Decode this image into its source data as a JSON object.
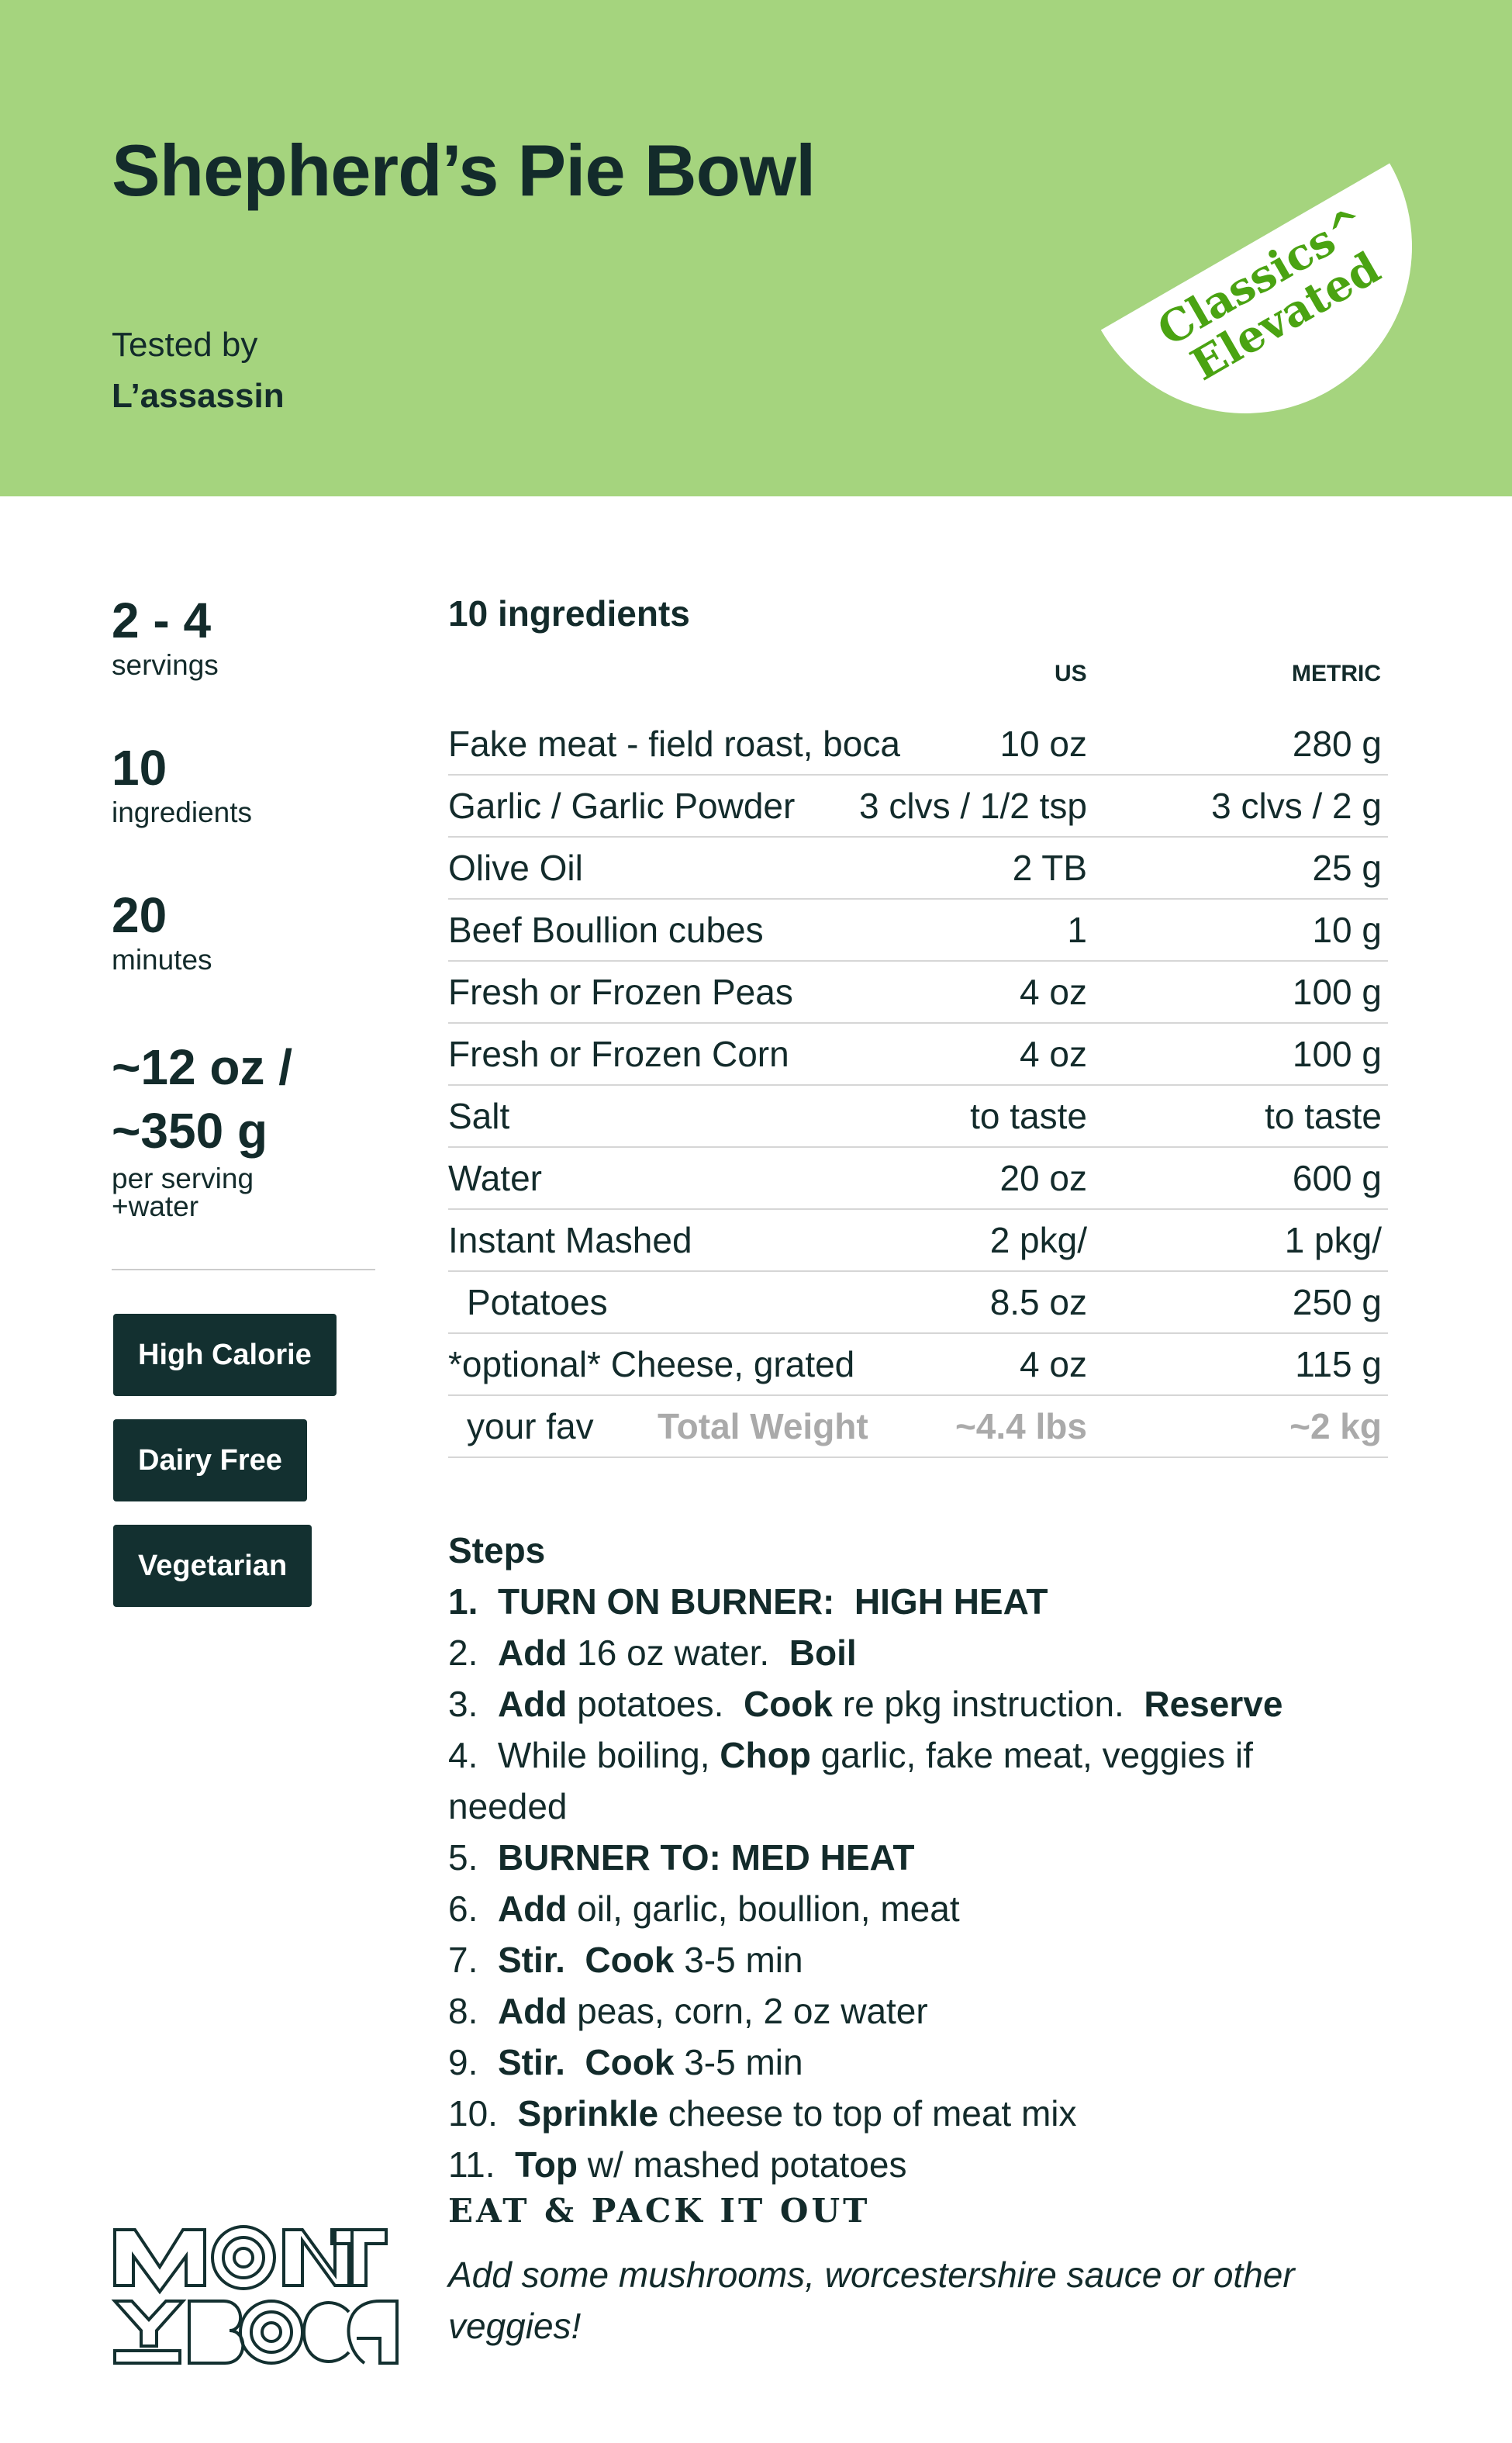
{
  "header": {
    "title": "Shepherd’s Pie Bowl",
    "tested_label": "Tested by",
    "tester": "L’assassin",
    "badge_line1": "Classics^",
    "badge_line2": "Elevated",
    "background": "#a5d47e",
    "badge_color": "#4aa312"
  },
  "stats": [
    {
      "value": "2 - 4",
      "label": "servings"
    },
    {
      "value": "10",
      "label": "ingredients"
    },
    {
      "value": "20",
      "label": "minutes"
    },
    {
      "value_line1": "~12 oz /",
      "value_line2": "~350 g",
      "label_line1": "per serving",
      "label_line2": "+water"
    }
  ],
  "tags": [
    "High Calorie",
    "Dairy Free",
    "Vegetarian"
  ],
  "ingredients": {
    "title": "10 ingredients",
    "col_us": "US",
    "col_metric": "METRIC",
    "rows": [
      {
        "name": "Fake meat - field roast, boca",
        "us": "10 oz",
        "metric": "280 g"
      },
      {
        "name": "Garlic / Garlic Powder",
        "us": "3 clvs / 1/2 tsp",
        "metric": "3 clvs / 2 g"
      },
      {
        "name": "Olive Oil",
        "us": "2 TB",
        "metric": "25 g"
      },
      {
        "name": "Beef Boullion cubes",
        "us": "1",
        "metric": "10 g"
      },
      {
        "name": "Fresh or Frozen Peas",
        "us": "4 oz",
        "metric": "100 g"
      },
      {
        "name": "Fresh or Frozen Corn",
        "us": "4 oz",
        "metric": "100 g"
      },
      {
        "name": "Salt",
        "us": "to taste",
        "metric": "to taste"
      },
      {
        "name": "Water",
        "us": "20 oz",
        "metric": "600 g"
      },
      {
        "name": "Instant Mashed",
        "us": "2 pkg/",
        "metric": "1 pkg/"
      },
      {
        "name": "  Potatoes",
        "us": "8.5 oz",
        "metric": "250 g"
      },
      {
        "name": "*optional* Cheese, grated",
        "us": "4 oz",
        "metric": "115 g"
      }
    ],
    "total": {
      "note": "your fav",
      "label": "Total Weight",
      "us": "~4.4 lbs",
      "metric": "~2 kg"
    }
  },
  "steps": {
    "title": "Steps",
    "items": [
      [
        {
          "b": "1.  "
        },
        {
          "b": "TURN ON BURNER:  HIGH HEAT"
        }
      ],
      [
        {
          "t": "2.  "
        },
        {
          "b": "Add"
        },
        {
          "t": " 16 oz water.  "
        },
        {
          "b": "Boil"
        }
      ],
      [
        {
          "t": "3.  "
        },
        {
          "b": "Add"
        },
        {
          "t": " potatoes.  "
        },
        {
          "b": "Cook"
        },
        {
          "t": " re pkg instruction.  "
        },
        {
          "b": "Reserve"
        }
      ],
      [
        {
          "t": "4.  While boiling, "
        },
        {
          "b": "Chop"
        },
        {
          "t": " garlic, fake meat, veggies if needed"
        }
      ],
      [
        {
          "t": "5.  "
        },
        {
          "b": "BURNER TO: MED HEAT"
        }
      ],
      [
        {
          "t": "6.  "
        },
        {
          "b": "Add"
        },
        {
          "t": " oil, garlic, boullion, meat"
        }
      ],
      [
        {
          "t": "7.  "
        },
        {
          "b": "Stir.  Cook"
        },
        {
          "t": " 3-5 min"
        }
      ],
      [
        {
          "t": "8.  "
        },
        {
          "b": "Add"
        },
        {
          "t": " peas, corn, 2 oz water"
        }
      ],
      [
        {
          "t": "9.  "
        },
        {
          "b": "Stir.  Cook"
        },
        {
          "t": " 3-5 min"
        }
      ],
      [
        {
          "t": "10.  "
        },
        {
          "b": "Sprinkle"
        },
        {
          "t": " cheese to top of meat mix"
        }
      ],
      [
        {
          "t": "11.  "
        },
        {
          "b": "Top"
        },
        {
          "t": " w/ mashed potatoes"
        }
      ]
    ]
  },
  "closing": "EAT & PACK IT OUT",
  "tip": "Add some mushrooms, worcestershire sauce or other veggies!",
  "logo": {
    "text": "MONT Y BOCA"
  }
}
